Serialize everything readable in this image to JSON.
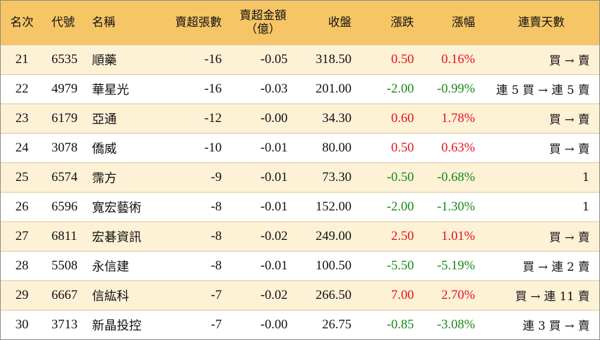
{
  "colors": {
    "header_bg": "#f6c566",
    "odd_row_bg": "#fdf1d6",
    "up": "#e8101a",
    "down": "#178a17"
  },
  "headers": {
    "rank": "名次",
    "code": "代號",
    "name": "名稱",
    "sell_volume": "賣超張數",
    "sell_amount_line1": "賣超金額",
    "sell_amount_line2": "（億）",
    "close": "收盤",
    "change": "漲跌",
    "change_pct": "漲幅",
    "streak": "連賣天數"
  },
  "rows": [
    {
      "rank": "21",
      "code": "6535",
      "name": "順藥",
      "sell_volume": "-16",
      "sell_amount": "-0.05",
      "close": "318.50",
      "change": "0.50",
      "change_pct": "0.16%",
      "direction": "up",
      "streak": "買 → 賣"
    },
    {
      "rank": "22",
      "code": "4979",
      "name": "華星光",
      "sell_volume": "-16",
      "sell_amount": "-0.03",
      "close": "201.00",
      "change": "-2.00",
      "change_pct": "-0.99%",
      "direction": "down",
      "streak": "連 5 買 → 連 5 賣"
    },
    {
      "rank": "23",
      "code": "6179",
      "name": "亞通",
      "sell_volume": "-12",
      "sell_amount": "-0.00",
      "close": "34.30",
      "change": "0.60",
      "change_pct": "1.78%",
      "direction": "up",
      "streak": "買 → 賣"
    },
    {
      "rank": "24",
      "code": "3078",
      "name": "僑威",
      "sell_volume": "-10",
      "sell_amount": "-0.01",
      "close": "80.00",
      "change": "0.50",
      "change_pct": "0.63%",
      "direction": "up",
      "streak": "買 → 賣"
    },
    {
      "rank": "25",
      "code": "6574",
      "name": "霈方",
      "sell_volume": "-9",
      "sell_amount": "-0.01",
      "close": "73.30",
      "change": "-0.50",
      "change_pct": "-0.68%",
      "direction": "down",
      "streak": "1"
    },
    {
      "rank": "26",
      "code": "6596",
      "name": "寬宏藝術",
      "sell_volume": "-8",
      "sell_amount": "-0.01",
      "close": "152.00",
      "change": "-2.00",
      "change_pct": "-1.30%",
      "direction": "down",
      "streak": "1"
    },
    {
      "rank": "27",
      "code": "6811",
      "name": "宏碁資訊",
      "sell_volume": "-8",
      "sell_amount": "-0.02",
      "close": "249.00",
      "change": "2.50",
      "change_pct": "1.01%",
      "direction": "up",
      "streak": "買 → 賣"
    },
    {
      "rank": "28",
      "code": "5508",
      "name": "永信建",
      "sell_volume": "-8",
      "sell_amount": "-0.01",
      "close": "100.50",
      "change": "-5.50",
      "change_pct": "-5.19%",
      "direction": "down",
      "streak": "買 → 連 2 賣"
    },
    {
      "rank": "29",
      "code": "6667",
      "name": "信紘科",
      "sell_volume": "-7",
      "sell_amount": "-0.02",
      "close": "266.50",
      "change": "7.00",
      "change_pct": "2.70%",
      "direction": "up",
      "streak": "買 → 連 11 賣"
    },
    {
      "rank": "30",
      "code": "3713",
      "name": "新晶投控",
      "sell_volume": "-7",
      "sell_amount": "-0.00",
      "close": "26.75",
      "change": "-0.85",
      "change_pct": "-3.08%",
      "direction": "down",
      "streak": "連 3 買 → 賣"
    }
  ]
}
